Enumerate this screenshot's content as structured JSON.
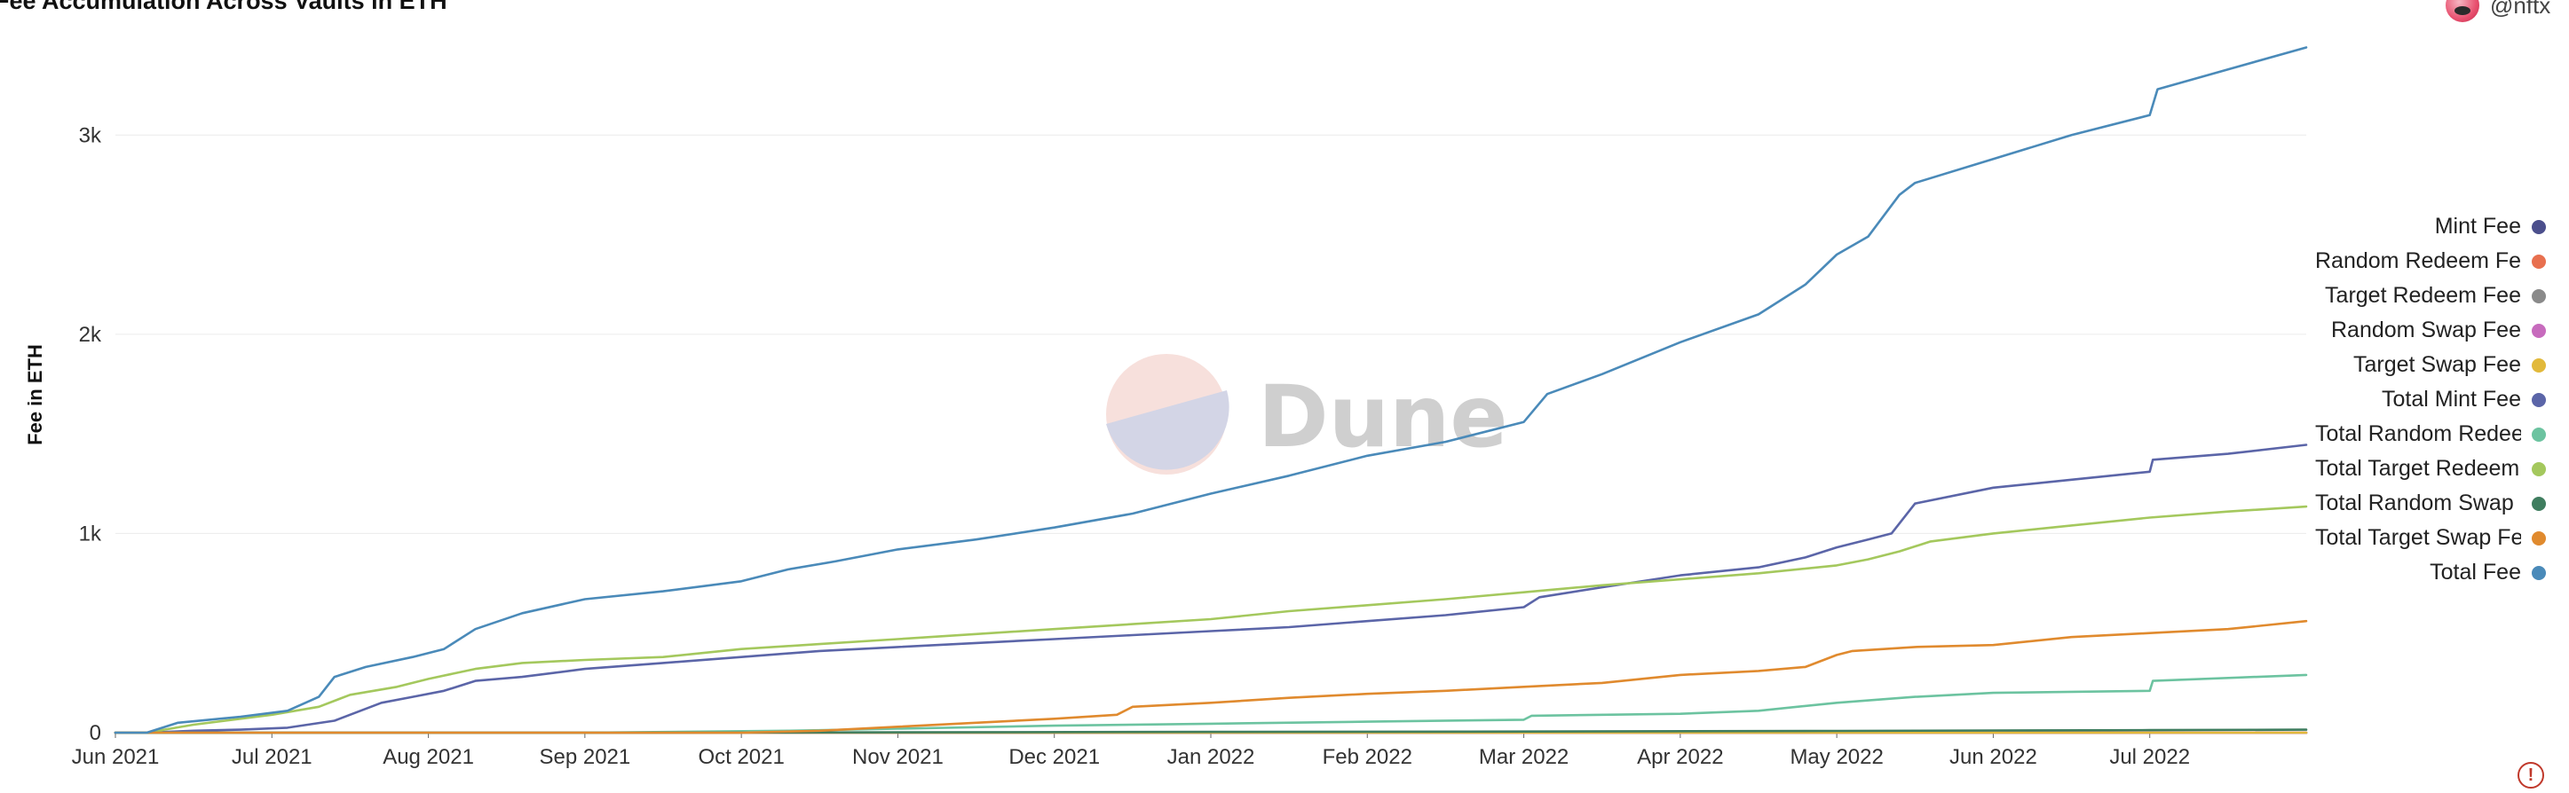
{
  "title": "Fee Accumulation Across Vaults in ETH",
  "author": {
    "handle": "@nftx"
  },
  "watermark": {
    "text": "Dune"
  },
  "alert": {
    "symbol": "!"
  },
  "chart_data": {
    "type": "line",
    "title": "Fee Accumulation Across Vaults in ETH",
    "xlabel": "",
    "ylabel": "Fee in ETH",
    "xlim": [
      0,
      14
    ],
    "ylim": [
      0,
      3500
    ],
    "grid": true,
    "legend_position": "right",
    "x_ticks": [
      {
        "label": "Jun 2021",
        "value": 0
      },
      {
        "label": "Jul 2021",
        "value": 1
      },
      {
        "label": "Aug 2021",
        "value": 2
      },
      {
        "label": "Sep 2021",
        "value": 3
      },
      {
        "label": "Oct 2021",
        "value": 4
      },
      {
        "label": "Nov 2021",
        "value": 5
      },
      {
        "label": "Dec 2021",
        "value": 6
      },
      {
        "label": "Jan 2022",
        "value": 7
      },
      {
        "label": "Feb 2022",
        "value": 8
      },
      {
        "label": "Mar 2022",
        "value": 9
      },
      {
        "label": "Apr 2022",
        "value": 10
      },
      {
        "label": "May 2022",
        "value": 11
      },
      {
        "label": "Jun 2022",
        "value": 12
      },
      {
        "label": "Jul 2022",
        "value": 13
      }
    ],
    "y_ticks": [
      {
        "label": "0",
        "value": 0
      },
      {
        "label": "1k",
        "value": 1000
      },
      {
        "label": "2k",
        "value": 2000
      },
      {
        "label": "3k",
        "value": 3000
      }
    ],
    "series": [
      {
        "name": "Mint Fee",
        "color": "#4b4f8c",
        "x": [
          0,
          14
        ],
        "y": [
          0,
          0
        ]
      },
      {
        "name": "Random Redeem Fee",
        "color": "#e8704f",
        "x": [
          0,
          14
        ],
        "y": [
          0,
          0
        ]
      },
      {
        "name": "Target Redeem Fee",
        "color": "#8a8a8a",
        "x": [
          0,
          14
        ],
        "y": [
          0,
          0
        ]
      },
      {
        "name": "Random Swap Fee",
        "color": "#c76bbd",
        "x": [
          0,
          14
        ],
        "y": [
          0,
          0
        ]
      },
      {
        "name": "Target Swap Fee",
        "color": "#e2b93b",
        "x": [
          0,
          14
        ],
        "y": [
          0,
          0
        ]
      },
      {
        "name": "Total Mint Fee",
        "color": "#5b65a8",
        "x": [
          0,
          0.2,
          0.5,
          0.8,
          1.1,
          1.4,
          1.7,
          1.9,
          2.1,
          2.3,
          2.6,
          3,
          3.5,
          4,
          4.5,
          5,
          5.5,
          6,
          6.5,
          7,
          7.5,
          8,
          8.5,
          9,
          9.1,
          9.5,
          10,
          10.5,
          10.8,
          11,
          11.2,
          11.35,
          11.5,
          12,
          12.5,
          13,
          13.02,
          13.5,
          14
        ],
        "y": [
          0,
          0,
          10,
          15,
          25,
          60,
          150,
          180,
          210,
          260,
          280,
          320,
          350,
          380,
          410,
          430,
          450,
          470,
          490,
          510,
          530,
          560,
          590,
          630,
          680,
          730,
          790,
          830,
          880,
          930,
          970,
          1000,
          1150,
          1230,
          1270,
          1310,
          1370,
          1400,
          1445
        ]
      },
      {
        "name": "Total Random Redeem Fee",
        "color": "#6cc3a0",
        "x": [
          0,
          3,
          4.3,
          5,
          6,
          7,
          8,
          9,
          9.05,
          10,
          10.5,
          11,
          11.5,
          12,
          13,
          13.02,
          14
        ],
        "y": [
          0,
          0,
          10,
          20,
          35,
          45,
          55,
          65,
          85,
          95,
          110,
          150,
          180,
          200,
          210,
          260,
          290
        ]
      },
      {
        "name": "Total Target Redeem Fee",
        "color": "#a4c85d",
        "x": [
          0,
          0.2,
          0.5,
          1,
          1.3,
          1.5,
          1.8,
          2,
          2.3,
          2.6,
          3,
          3.5,
          4,
          4.5,
          5,
          5.5,
          6,
          6.5,
          7,
          7.5,
          8,
          8.5,
          9,
          9.5,
          10,
          10.5,
          11,
          11.2,
          11.4,
          11.6,
          12,
          12.5,
          13,
          13.5,
          14
        ],
        "y": [
          0,
          0,
          40,
          90,
          130,
          190,
          230,
          270,
          320,
          350,
          365,
          380,
          420,
          445,
          470,
          495,
          520,
          545,
          570,
          610,
          640,
          670,
          705,
          740,
          770,
          800,
          840,
          870,
          910,
          960,
          1000,
          1040,
          1080,
          1110,
          1135
        ]
      },
      {
        "name": "Total Random Swap Fee",
        "color": "#3f7d5f",
        "x": [
          0,
          3,
          5,
          7,
          9,
          11,
          12,
          13,
          14
        ],
        "y": [
          0,
          0,
          2,
          4,
          6,
          9,
          11,
          13,
          15
        ]
      },
      {
        "name": "Total Target Swap Fee",
        "color": "#e08a2e",
        "x": [
          0,
          4,
          4.5,
          5,
          5.5,
          6,
          6.4,
          6.5,
          7,
          7.5,
          8,
          8.5,
          9,
          9.5,
          10,
          10.5,
          10.8,
          11,
          11.1,
          11.5,
          12,
          12.5,
          13,
          13.5,
          14
        ],
        "y": [
          0,
          0,
          10,
          30,
          50,
          70,
          90,
          130,
          150,
          175,
          195,
          210,
          230,
          250,
          290,
          310,
          330,
          390,
          410,
          430,
          440,
          480,
          500,
          520,
          560
        ]
      },
      {
        "name": "Total Fee",
        "color": "#4a8ab9",
        "x": [
          0,
          0.2,
          0.4,
          0.8,
          1.1,
          1.3,
          1.4,
          1.6,
          1.9,
          2.1,
          2.3,
          2.6,
          3,
          3.5,
          4,
          4.3,
          4.6,
          5,
          5.5,
          6,
          6.5,
          7,
          7.5,
          8,
          8.5,
          9,
          9.15,
          9.5,
          10,
          10.5,
          10.8,
          11,
          11.2,
          11.4,
          11.5,
          12,
          12.5,
          13,
          13.05,
          13.5,
          14
        ],
        "y": [
          0,
          0,
          50,
          80,
          110,
          180,
          280,
          330,
          380,
          420,
          520,
          600,
          670,
          710,
          760,
          820,
          860,
          920,
          970,
          1030,
          1100,
          1200,
          1290,
          1390,
          1460,
          1560,
          1700,
          1800,
          1960,
          2100,
          2250,
          2400,
          2490,
          2700,
          2760,
          2880,
          3000,
          3100,
          3230,
          3330,
          3440
        ]
      }
    ]
  }
}
